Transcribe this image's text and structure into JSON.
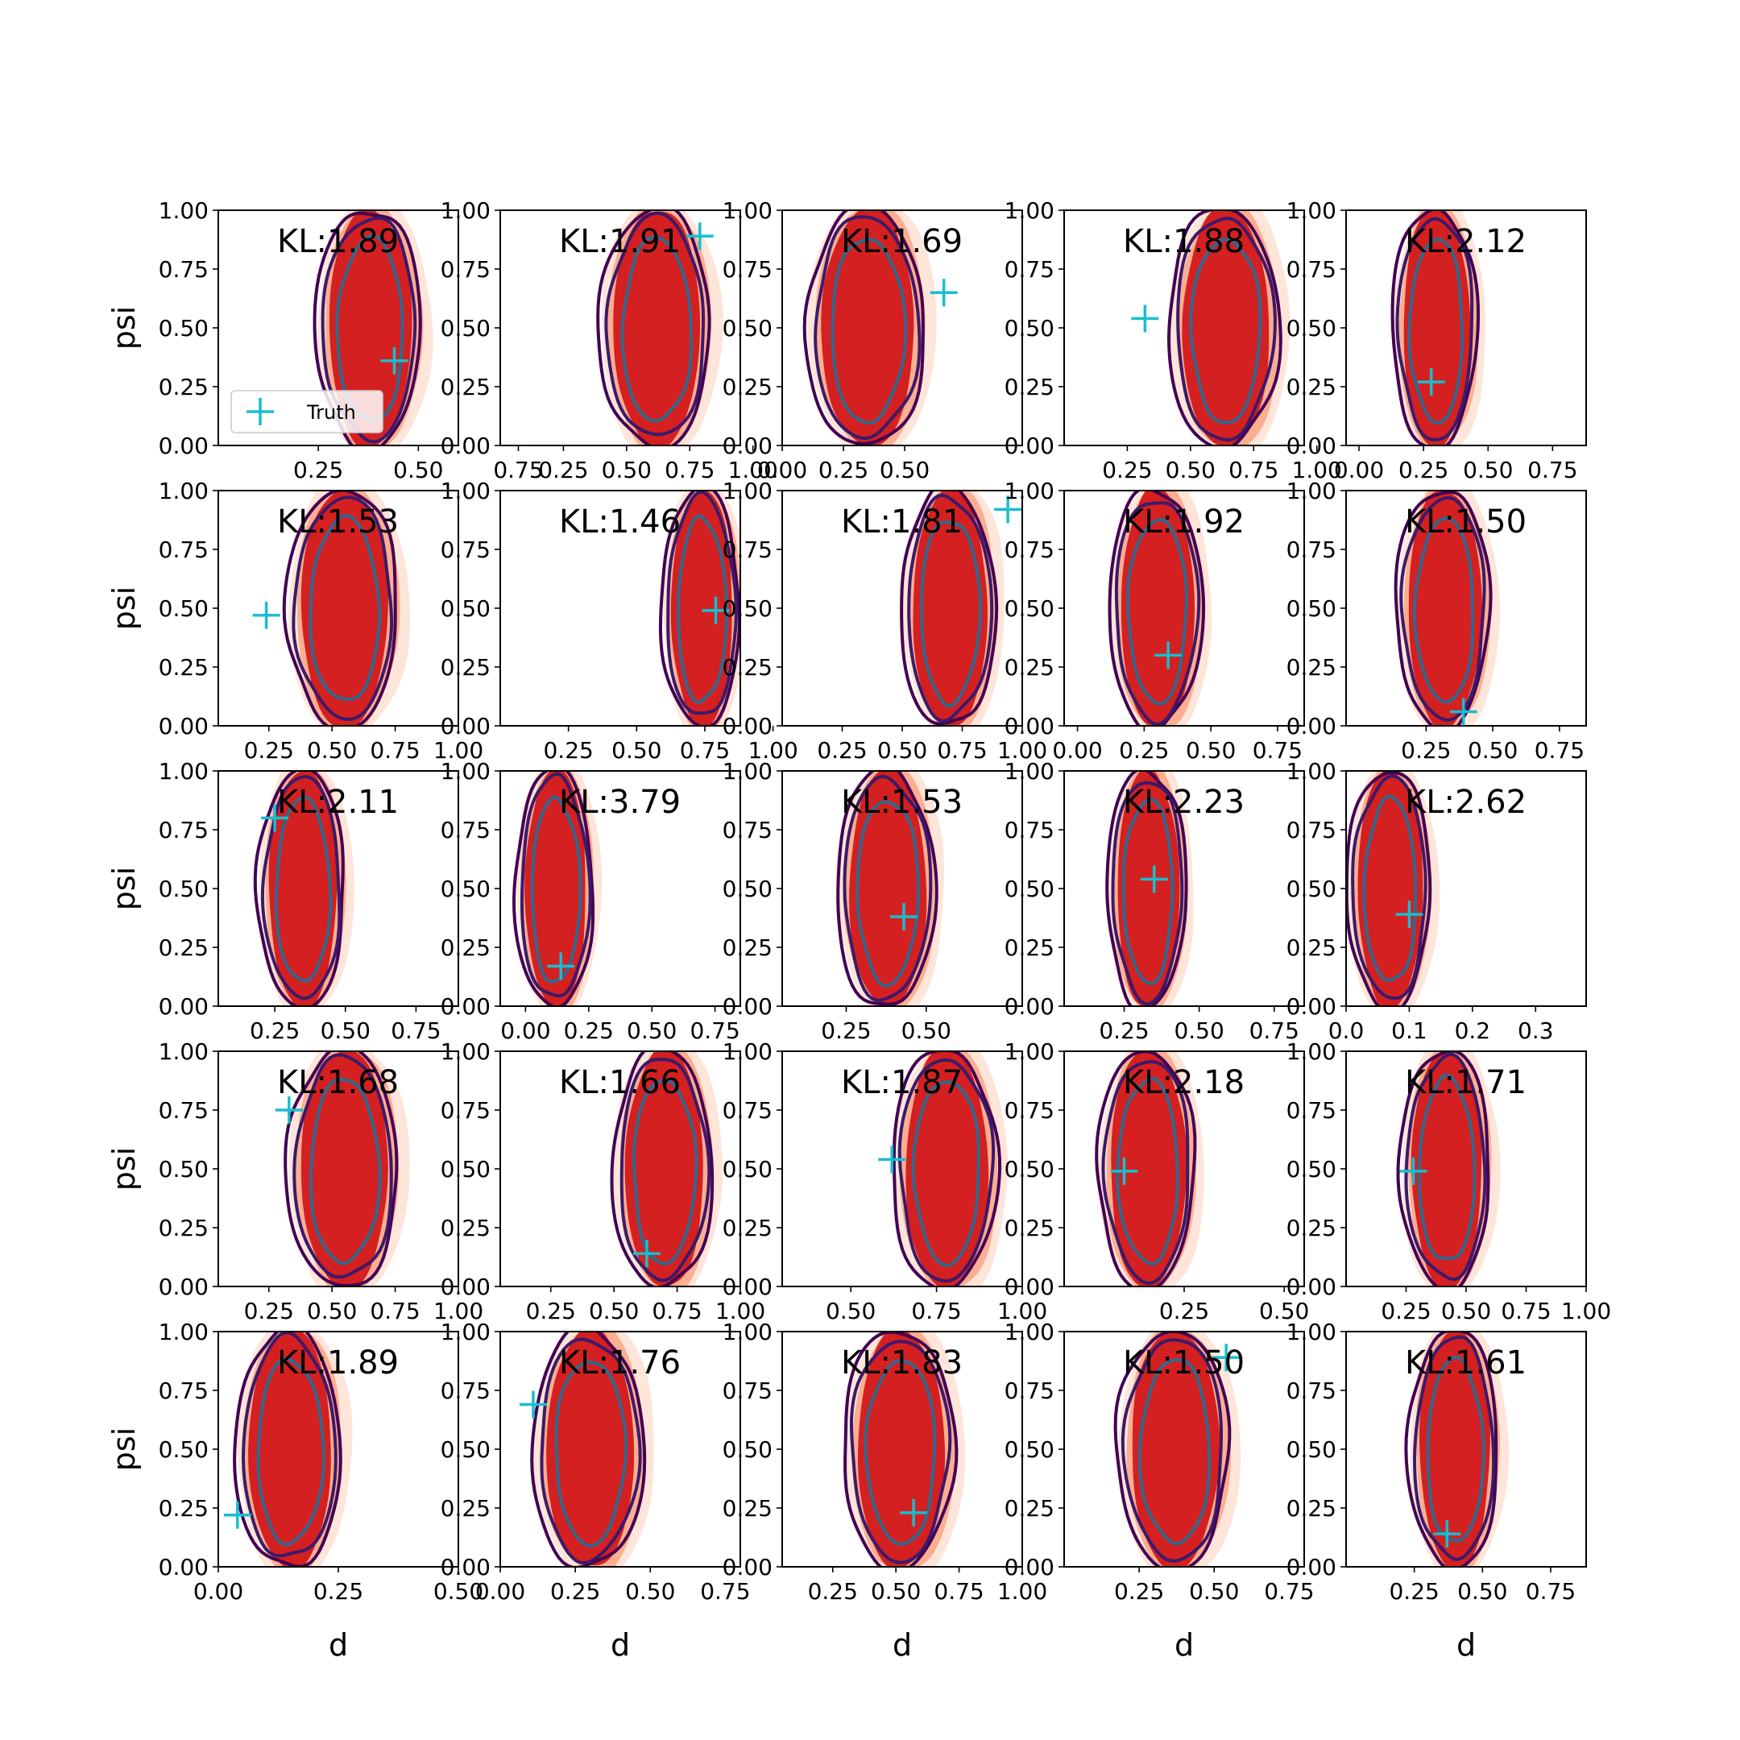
{
  "figure": {
    "rows": 5,
    "cols": 5,
    "colors": {
      "fill_outer": "#fee5d9",
      "fill_mid": "#fcae91",
      "fill_inner": "#d42020",
      "contour_outer": "#440154",
      "contour_mid": "#3b1a6b",
      "contour_inner": "#31688e",
      "truth_marker": "#17becf"
    },
    "legend_label": "Truth"
  },
  "chart_data": [
    {
      "type": "contour",
      "kl": "KL:1.89",
      "xlim": [
        0.0,
        0.6
      ],
      "xticks": [
        "0.25",
        "0.50",
        "0.75"
      ],
      "xtick_vals": [
        0.25,
        0.5,
        0.75
      ],
      "ylim": [
        0,
        1
      ],
      "yticks": [
        "0.00",
        "0.25",
        "0.50",
        "0.75",
        "1.00"
      ],
      "xlabel": "",
      "ylabel": "psi",
      "cx": 0.38,
      "sx": 0.12,
      "truth": [
        0.44,
        0.36
      ],
      "legend": true
    },
    {
      "type": "contour",
      "kl": "KL:1.91",
      "xlim": [
        0.0,
        0.95
      ],
      "xticks": [
        "0.25",
        "0.50",
        "0.75",
        "1.00"
      ],
      "xtick_vals": [
        0.25,
        0.5,
        0.75,
        1.0
      ],
      "ylim": [
        0,
        1
      ],
      "yticks": [
        "0.00",
        "0.25",
        "0.50",
        "0.75",
        "1.00"
      ],
      "xlabel": "",
      "ylabel": "",
      "cx": 0.62,
      "sx": 0.2,
      "truth": [
        0.79,
        0.89
      ]
    },
    {
      "type": "contour",
      "kl": "KL:1.69",
      "xlim": [
        0.0,
        0.98
      ],
      "xticks": [
        "0.00",
        "0.25",
        "0.50"
      ],
      "xtick_vals": [
        0.0,
        0.25,
        0.5
      ],
      "ylim": [
        0,
        1
      ],
      "yticks": [
        "0.00",
        "0.25",
        "0.50",
        "0.75",
        "1.00"
      ],
      "xlabel": "",
      "ylabel": "",
      "cx": 0.35,
      "sx": 0.22,
      "truth": [
        0.66,
        0.65
      ]
    },
    {
      "type": "contour",
      "kl": "KL:1.88",
      "xlim": [
        0.0,
        0.95
      ],
      "xticks": [
        "0.25",
        "0.50",
        "0.75",
        "1.00"
      ],
      "xtick_vals": [
        0.25,
        0.5,
        0.75,
        1.0
      ],
      "ylim": [
        0,
        1
      ],
      "yticks": [
        "0.00",
        "0.25",
        "0.50",
        "0.75",
        "1.00"
      ],
      "xlabel": "",
      "ylabel": "",
      "cx": 0.64,
      "sx": 0.2,
      "truth": [
        0.32,
        0.54
      ]
    },
    {
      "type": "contour",
      "kl": "KL:2.12",
      "xlim": [
        -0.05,
        0.88
      ],
      "xticks": [
        "0.00",
        "0.25",
        "0.50",
        "0.75"
      ],
      "xtick_vals": [
        0.0,
        0.25,
        0.5,
        0.75
      ],
      "ylim": [
        0,
        1
      ],
      "yticks": [
        "0.00",
        "0.25",
        "0.50",
        "0.75",
        "1.00"
      ],
      "xlabel": "",
      "ylabel": "",
      "cx": 0.3,
      "sx": 0.15,
      "truth": [
        0.28,
        0.27
      ]
    },
    {
      "type": "contour",
      "kl": "KL:1.53",
      "xlim": [
        0.05,
        1.0
      ],
      "xticks": [
        "0.25",
        "0.50",
        "0.75",
        "1.00"
      ],
      "xtick_vals": [
        0.25,
        0.5,
        0.75,
        1.0
      ],
      "ylim": [
        0,
        1
      ],
      "yticks": [
        "0.00",
        "0.25",
        "0.50",
        "0.75",
        "1.00"
      ],
      "xlabel": "",
      "ylabel": "psi",
      "cx": 0.55,
      "sx": 0.2,
      "truth": [
        0.24,
        0.47
      ]
    },
    {
      "type": "contour",
      "kl": "KL:1.46",
      "xlim": [
        0.0,
        0.88
      ],
      "xticks": [
        "0.25",
        "0.50",
        "0.75",
        "1.00"
      ],
      "xtick_vals": [
        0.25,
        0.5,
        0.75,
        1.0
      ],
      "ylim": [
        0,
        1
      ],
      "yticks": [
        "0.00",
        "0.25",
        "0.50",
        "0.75",
        "1.00"
      ],
      "xlabel": "",
      "ylabel": "",
      "cx": 0.74,
      "sx": 0.13,
      "truth": [
        0.79,
        0.49
      ]
    },
    {
      "type": "contour",
      "kl": "KL:1.81",
      "xlim": [
        0.0,
        1.0
      ],
      "xticks": [
        "0.25",
        "0.50",
        "0.75",
        "1.00"
      ],
      "xtick_vals": [
        0.25,
        0.5,
        0.75,
        1.0
      ],
      "ylim": [
        0,
        1
      ],
      "yticks": [
        "0.00",
        "0.25",
        "0.50",
        "0.75",
        "1.00"
      ],
      "xlabel": "",
      "ylabel": "",
      "cx": 0.7,
      "sx": 0.18,
      "truth": [
        0.94,
        0.92
      ]
    },
    {
      "type": "contour",
      "kl": "KL:1.92",
      "xlim": [
        -0.05,
        0.85
      ],
      "xticks": [
        "0.00",
        "0.25",
        "0.50",
        "0.75"
      ],
      "xtick_vals": [
        0.0,
        0.25,
        0.5,
        0.75
      ],
      "ylim": [
        0,
        1
      ],
      "yticks": [
        "0.00",
        "0.25",
        "0.50",
        "0.75",
        "1.00"
      ],
      "xlabel": "",
      "ylabel": "",
      "cx": 0.3,
      "sx": 0.16,
      "truth": [
        0.34,
        0.3
      ]
    },
    {
      "type": "contour",
      "kl": "KL:1.50",
      "xlim": [
        -0.05,
        0.85
      ],
      "xticks": [
        "0.25",
        "0.50",
        "0.75"
      ],
      "xtick_vals": [
        0.25,
        0.5,
        0.75
      ],
      "ylim": [
        0,
        1
      ],
      "yticks": [
        "0.00",
        "0.25",
        "0.50",
        "0.75",
        "1.00"
      ],
      "xlabel": "",
      "ylabel": "",
      "cx": 0.32,
      "sx": 0.16,
      "truth": [
        0.39,
        0.06
      ]
    },
    {
      "type": "contour",
      "kl": "KL:2.11",
      "xlim": [
        0.05,
        0.9
      ],
      "xticks": [
        "0.25",
        "0.50",
        "0.75"
      ],
      "xtick_vals": [
        0.25,
        0.5,
        0.75
      ],
      "ylim": [
        0,
        1
      ],
      "yticks": [
        "0.00",
        "0.25",
        "0.50",
        "0.75",
        "1.00"
      ],
      "xlabel": "",
      "ylabel": "psi",
      "cx": 0.35,
      "sx": 0.14,
      "truth": [
        0.25,
        0.8
      ]
    },
    {
      "type": "contour",
      "kl": "KL:3.79",
      "xlim": [
        -0.1,
        0.85
      ],
      "xticks": [
        "0.00",
        "0.25",
        "0.50",
        "0.75"
      ],
      "xtick_vals": [
        0.0,
        0.25,
        0.5,
        0.75
      ],
      "ylim": [
        0,
        1
      ],
      "yticks": [
        "0.00",
        "0.25",
        "0.50",
        "0.75",
        "1.00"
      ],
      "xlabel": "",
      "ylabel": "",
      "cx": 0.12,
      "sx": 0.14,
      "truth": [
        0.14,
        0.17
      ]
    },
    {
      "type": "contour",
      "kl": "KL:1.53",
      "xlim": [
        0.05,
        0.8
      ],
      "xticks": [
        "0.25",
        "0.50"
      ],
      "xtick_vals": [
        0.25,
        0.5
      ],
      "ylim": [
        0,
        1
      ],
      "yticks": [
        "0.00",
        "0.25",
        "0.50",
        "0.75",
        "1.00"
      ],
      "xlabel": "",
      "ylabel": "",
      "cx": 0.38,
      "sx": 0.14,
      "truth": [
        0.43,
        0.38
      ]
    },
    {
      "type": "contour",
      "kl": "KL:2.23",
      "xlim": [
        0.05,
        0.85
      ],
      "xticks": [
        "0.25",
        "0.50",
        "0.75"
      ],
      "xtick_vals": [
        0.25,
        0.5,
        0.75
      ],
      "ylim": [
        0,
        1
      ],
      "yticks": [
        "0.00",
        "0.25",
        "0.50",
        "0.75",
        "1.00"
      ],
      "xlabel": "",
      "ylabel": "",
      "cx": 0.33,
      "sx": 0.12,
      "truth": [
        0.35,
        0.54
      ]
    },
    {
      "type": "contour",
      "kl": "KL:2.62",
      "xlim": [
        0.0,
        0.38
      ],
      "xticks": [
        "0.0",
        "0.1",
        "0.2",
        "0.3"
      ],
      "xtick_vals": [
        0.0,
        0.1,
        0.2,
        0.3
      ],
      "ylim": [
        0,
        1
      ],
      "yticks": [
        "0.00",
        "0.25",
        "0.50",
        "0.75",
        "1.00"
      ],
      "xlabel": "",
      "ylabel": "",
      "cx": 0.07,
      "sx": 0.06,
      "truth": [
        0.1,
        0.39
      ]
    },
    {
      "type": "contour",
      "kl": "KL:1.68",
      "xlim": [
        0.05,
        1.0
      ],
      "xticks": [
        "0.25",
        "0.50",
        "0.75",
        "1.00"
      ],
      "xtick_vals": [
        0.25,
        0.5,
        0.75,
        1.0
      ],
      "ylim": [
        0,
        1
      ],
      "yticks": [
        "0.00",
        "0.25",
        "0.50",
        "0.75",
        "1.00"
      ],
      "xlabel": "",
      "ylabel": "psi",
      "cx": 0.55,
      "sx": 0.2,
      "truth": [
        0.33,
        0.75
      ]
    },
    {
      "type": "contour",
      "kl": "KL:1.66",
      "xlim": [
        0.05,
        1.0
      ],
      "xticks": [
        "0.25",
        "0.50",
        "0.75",
        "1.00"
      ],
      "xtick_vals": [
        0.25,
        0.5,
        0.75,
        1.0
      ],
      "ylim": [
        0,
        1
      ],
      "yticks": [
        "0.00",
        "0.25",
        "0.50",
        "0.75",
        "1.00"
      ],
      "xlabel": "",
      "ylabel": "",
      "cx": 0.7,
      "sx": 0.18,
      "truth": [
        0.63,
        0.14
      ]
    },
    {
      "type": "contour",
      "kl": "KL:1.87",
      "xlim": [
        0.3,
        1.0
      ],
      "xticks": [
        "0.50",
        "0.75",
        "1.00"
      ],
      "xtick_vals": [
        0.5,
        0.75,
        1.0
      ],
      "ylim": [
        0,
        1
      ],
      "yticks": [
        "0.00",
        "0.25",
        "0.50",
        "0.75",
        "1.00"
      ],
      "xlabel": "",
      "ylabel": "",
      "cx": 0.78,
      "sx": 0.14,
      "truth": [
        0.62,
        0.54
      ]
    },
    {
      "type": "contour",
      "kl": "KL:2.18",
      "xlim": [
        -0.05,
        0.55
      ],
      "xticks": [
        "0.25",
        "0.50"
      ],
      "xtick_vals": [
        0.25,
        0.5
      ],
      "ylim": [
        0,
        1
      ],
      "yticks": [
        "0.00",
        "0.25",
        "0.50",
        "0.75",
        "1.00"
      ],
      "xlabel": "",
      "ylabel": "",
      "cx": 0.16,
      "sx": 0.11,
      "truth": [
        0.1,
        0.49
      ]
    },
    {
      "type": "contour",
      "kl": "KL:1.71",
      "xlim": [
        0.0,
        1.0
      ],
      "xticks": [
        "0.25",
        "0.50",
        "0.75",
        "1.00"
      ],
      "xtick_vals": [
        0.25,
        0.5,
        0.75,
        1.0
      ],
      "ylim": [
        0,
        1
      ],
      "yticks": [
        "0.00",
        "0.25",
        "0.50",
        "0.75",
        "1.00"
      ],
      "xlabel": "",
      "ylabel": "",
      "cx": 0.42,
      "sx": 0.17,
      "truth": [
        0.28,
        0.49
      ]
    },
    {
      "type": "contour",
      "kl": "KL:1.89",
      "xlim": [
        0.0,
        0.5
      ],
      "xticks": [
        "0.00",
        "0.25",
        "0.50"
      ],
      "xtick_vals": [
        0.0,
        0.25,
        0.5
      ],
      "ylim": [
        0,
        1
      ],
      "yticks": [
        "0.00",
        "0.25",
        "0.50",
        "0.75",
        "1.00"
      ],
      "xlabel": "d",
      "ylabel": "psi",
      "cx": 0.15,
      "sx": 0.1,
      "truth": [
        0.04,
        0.22
      ]
    },
    {
      "type": "contour",
      "kl": "KL:1.76",
      "xlim": [
        0.0,
        0.8
      ],
      "xticks": [
        "0.00",
        "0.25",
        "0.50",
        "0.75"
      ],
      "xtick_vals": [
        0.0,
        0.25,
        0.5,
        0.75
      ],
      "ylim": [
        0,
        1
      ],
      "yticks": [
        "0.00",
        "0.25",
        "0.50",
        "0.75",
        "1.00"
      ],
      "xlabel": "d",
      "ylabel": "",
      "cx": 0.3,
      "sx": 0.17,
      "truth": [
        0.11,
        0.69
      ]
    },
    {
      "type": "contour",
      "kl": "KL:1.83",
      "xlim": [
        0.05,
        1.0
      ],
      "xticks": [
        "0.25",
        "0.50",
        "0.75",
        "1.00"
      ],
      "xtick_vals": [
        0.25,
        0.5,
        0.75,
        1.0
      ],
      "ylim": [
        0,
        1
      ],
      "yticks": [
        "0.00",
        "0.25",
        "0.50",
        "0.75",
        "1.00"
      ],
      "xlabel": "d",
      "ylabel": "",
      "cx": 0.52,
      "sx": 0.2,
      "truth": [
        0.57,
        0.23
      ]
    },
    {
      "type": "contour",
      "kl": "KL:1.50",
      "xlim": [
        0.0,
        0.8
      ],
      "xticks": [
        "0.25",
        "0.50",
        "0.75"
      ],
      "xtick_vals": [
        0.25,
        0.5,
        0.75
      ],
      "ylim": [
        0,
        1
      ],
      "yticks": [
        "0.00",
        "0.25",
        "0.50",
        "0.75",
        "1.00"
      ],
      "xlabel": "d",
      "ylabel": "",
      "cx": 0.37,
      "sx": 0.17,
      "truth": [
        0.54,
        0.89
      ]
    },
    {
      "type": "contour",
      "kl": "KL:1.61",
      "xlim": [
        0.0,
        0.88
      ],
      "xticks": [
        "0.25",
        "0.50",
        "0.75"
      ],
      "xtick_vals": [
        0.25,
        0.5,
        0.75
      ],
      "ylim": [
        0,
        1
      ],
      "yticks": [
        "0.00",
        "0.25",
        "0.50",
        "0.75",
        "1.00"
      ],
      "xlabel": "d",
      "ylabel": "",
      "cx": 0.4,
      "sx": 0.15,
      "truth": [
        0.37,
        0.14
      ]
    }
  ]
}
